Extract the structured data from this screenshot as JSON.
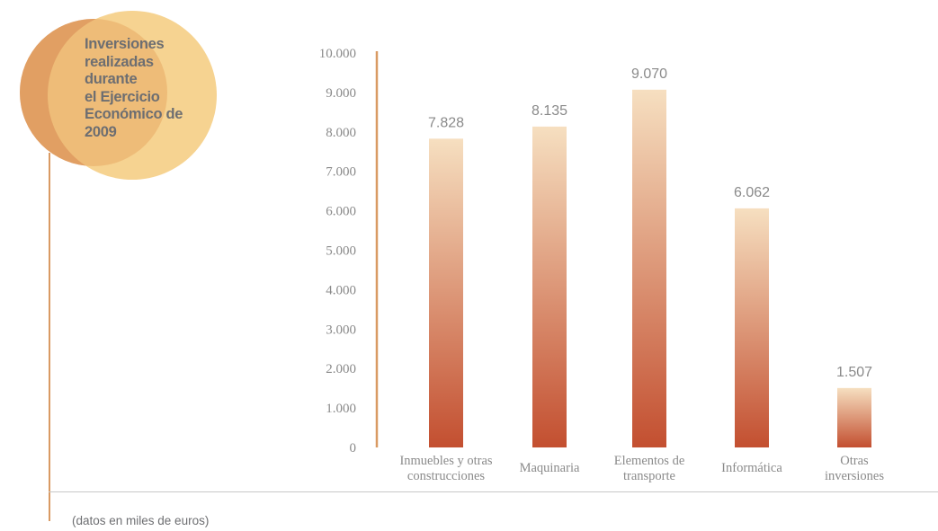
{
  "badge": {
    "title_lines": [
      "Inversiones",
      "realizadas",
      "durante",
      "el Ejercicio",
      "Económico de",
      "2009"
    ]
  },
  "footnote": "(datos en miles de euros)",
  "colors": {
    "bar_top": "#f6dfc0",
    "bar_bottom": "#c34f30",
    "axis": "#d99a63",
    "text": "#8a8a8a",
    "badge_back": "#d88a55",
    "badge_front": "#f5cf88"
  },
  "chart_data": {
    "type": "bar",
    "categories": [
      [
        "Inmuebles y otras",
        "construcciones"
      ],
      [
        "Maquinaria"
      ],
      [
        "Elementos de",
        "transporte"
      ],
      [
        "Informática"
      ],
      [
        "Otras",
        "inversiones"
      ]
    ],
    "values": [
      7828,
      8135,
      9070,
      6062,
      1507
    ],
    "value_labels": [
      "7.828",
      "8.135",
      "9.070",
      "6.062",
      "1.507"
    ],
    "yticks": [
      {
        "value": 0,
        "label": "0"
      },
      {
        "value": 1000,
        "label": "1.000"
      },
      {
        "value": 2000,
        "label": "2.000"
      },
      {
        "value": 3000,
        "label": "3.000"
      },
      {
        "value": 4000,
        "label": "4.000"
      },
      {
        "value": 5000,
        "label": "5.000"
      },
      {
        "value": 6000,
        "label": "6.000"
      },
      {
        "value": 7000,
        "label": "7.000"
      },
      {
        "value": 8000,
        "label": "8.000"
      },
      {
        "value": 9000,
        "label": "9.000"
      },
      {
        "value": 10000,
        "label": "10.000"
      }
    ],
    "ylim": [
      0,
      10000
    ],
    "grid": false
  }
}
